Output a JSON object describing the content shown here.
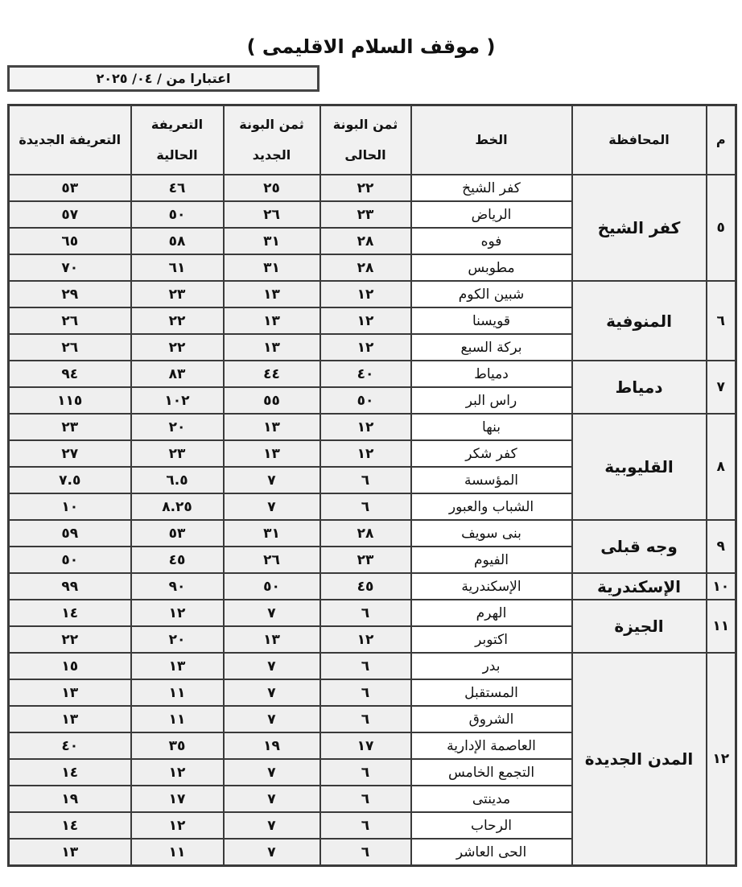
{
  "title": "( موقف السلام الاقليمى )",
  "date_label": "اعتبارا من   / ٠٤/ ٢٠٢٥",
  "headers": {
    "m": "م",
    "governorate": "المحافظة",
    "line": "الخط",
    "current_ticket": "ثمن البونة الحالى",
    "new_ticket": "ثمن البونة الجديد",
    "current_fare": "التعريفة الحالية",
    "new_fare": "التعريفة الجديدة"
  },
  "groups": [
    {
      "num": "٥",
      "governorate": "كفر الشيخ",
      "rows": [
        [
          "كفر الشيخ",
          "٢٢",
          "٢٥",
          "٤٦",
          "٥٣"
        ],
        [
          "الرياض",
          "٢٣",
          "٢٦",
          "٥٠",
          "٥٧"
        ],
        [
          "فوه",
          "٢٨",
          "٣١",
          "٥٨",
          "٦٥"
        ],
        [
          "مطوبس",
          "٢٨",
          "٣١",
          "٦١",
          "٧٠"
        ]
      ]
    },
    {
      "num": "٦",
      "governorate": "المنوفية",
      "rows": [
        [
          "شبين الكوم",
          "١٢",
          "١٣",
          "٢٣",
          "٢٩"
        ],
        [
          "قويسنا",
          "١٢",
          "١٣",
          "٢٢",
          "٢٦"
        ],
        [
          "بركة السبع",
          "١٢",
          "١٣",
          "٢٢",
          "٢٦"
        ]
      ]
    },
    {
      "num": "٧",
      "governorate": "دمياط",
      "rows": [
        [
          "دمياط",
          "٤٠",
          "٤٤",
          "٨٣",
          "٩٤"
        ],
        [
          "راس البر",
          "٥٠",
          "٥٥",
          "١٠٢",
          "١١٥"
        ]
      ]
    },
    {
      "num": "٨",
      "governorate": "القليوبية",
      "rows": [
        [
          "بنها",
          "١٢",
          "١٣",
          "٢٠",
          "٢٣"
        ],
        [
          "كفر شكر",
          "١٢",
          "١٣",
          "٢٣",
          "٢٧"
        ],
        [
          "المؤسسة",
          "٦",
          "٧",
          "٦.٥",
          "٧.٥"
        ],
        [
          "الشباب والعبور",
          "٦",
          "٧",
          "٨.٢٥",
          "١٠"
        ]
      ]
    },
    {
      "num": "٩",
      "governorate": "وجه قبلى",
      "rows": [
        [
          "بنى سويف",
          "٢٨",
          "٣١",
          "٥٣",
          "٥٩"
        ],
        [
          "الفيوم",
          "٢٣",
          "٢٦",
          "٤٥",
          "٥٠"
        ]
      ]
    },
    {
      "num": "١٠",
      "governorate": "الإسكندرية",
      "rows": [
        [
          "الإسكندرية",
          "٤٥",
          "٥٠",
          "٩٠",
          "٩٩"
        ]
      ]
    },
    {
      "num": "١١",
      "governorate": "الجيزة",
      "rows": [
        [
          "الهرم",
          "٦",
          "٧",
          "١٢",
          "١٤"
        ],
        [
          "اكتوبر",
          "١٢",
          "١٣",
          "٢٠",
          "٢٢"
        ]
      ]
    },
    {
      "num": "١٢",
      "governorate": "المدن الجديدة",
      "rows": [
        [
          "بدر",
          "٦",
          "٧",
          "١٣",
          "١٥"
        ],
        [
          "المستقبل",
          "٦",
          "٧",
          "١١",
          "١٣"
        ],
        [
          "الشروق",
          "٦",
          "٧",
          "١١",
          "١٣"
        ],
        [
          "العاصمة الإدارية",
          "١٧",
          "١٩",
          "٣٥",
          "٤٠"
        ],
        [
          "التجمع الخامس",
          "٦",
          "٧",
          "١٢",
          "١٤"
        ],
        [
          "مدينتى",
          "٦",
          "٧",
          "١٧",
          "١٩"
        ],
        [
          "الرحاب",
          "٦",
          "٧",
          "١٢",
          "١٤"
        ],
        [
          "الحى العاشر",
          "٦",
          "٧",
          "١١",
          "١٣"
        ]
      ]
    }
  ]
}
